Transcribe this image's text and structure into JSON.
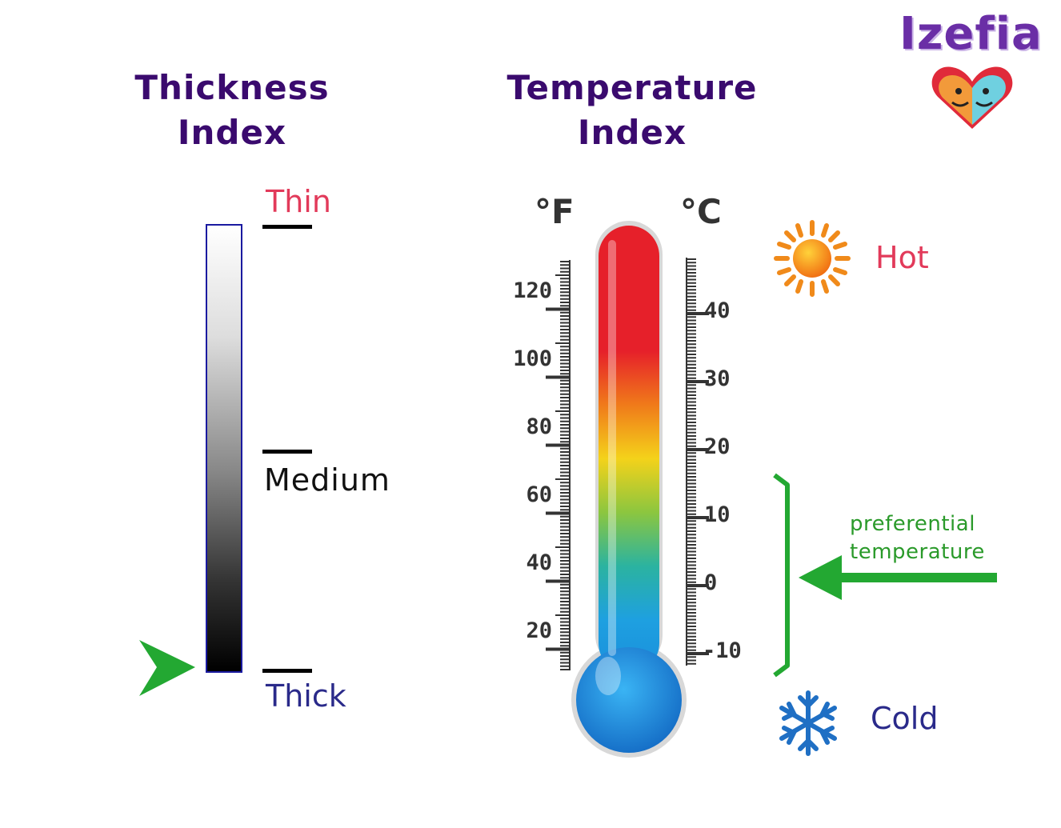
{
  "brand": {
    "name": "Izefia"
  },
  "thickness": {
    "title_line1": "Thickness",
    "title_line2": "Index",
    "labels": {
      "thin": "Thin",
      "medium": "Medium",
      "thick": "Thick"
    },
    "indicator_level": "thick"
  },
  "temperature": {
    "title_line1": "Temperature",
    "title_line2": "Index",
    "fahrenheit_unit": "°F",
    "celsius_unit": "°C",
    "fahrenheit_ticks": [
      "120",
      "100",
      "80",
      "60",
      "40",
      "20"
    ],
    "celsius_ticks": [
      "40",
      "30",
      "20",
      "10",
      "0",
      "-10"
    ],
    "hot_label": "Hot",
    "cold_label": "Cold",
    "preferential_line1": "preferential",
    "preferential_line2": "temperature"
  },
  "colors": {
    "title": "#3a0a6e",
    "thin": "#e23a5a",
    "medium": "#111111",
    "thick": "#2a2a8a",
    "hot": "#e23a5a",
    "cold": "#2a2a8a",
    "preferential": "#2a9a2a",
    "arrow": "#23a832",
    "snowflake": "#1f6fc4"
  }
}
